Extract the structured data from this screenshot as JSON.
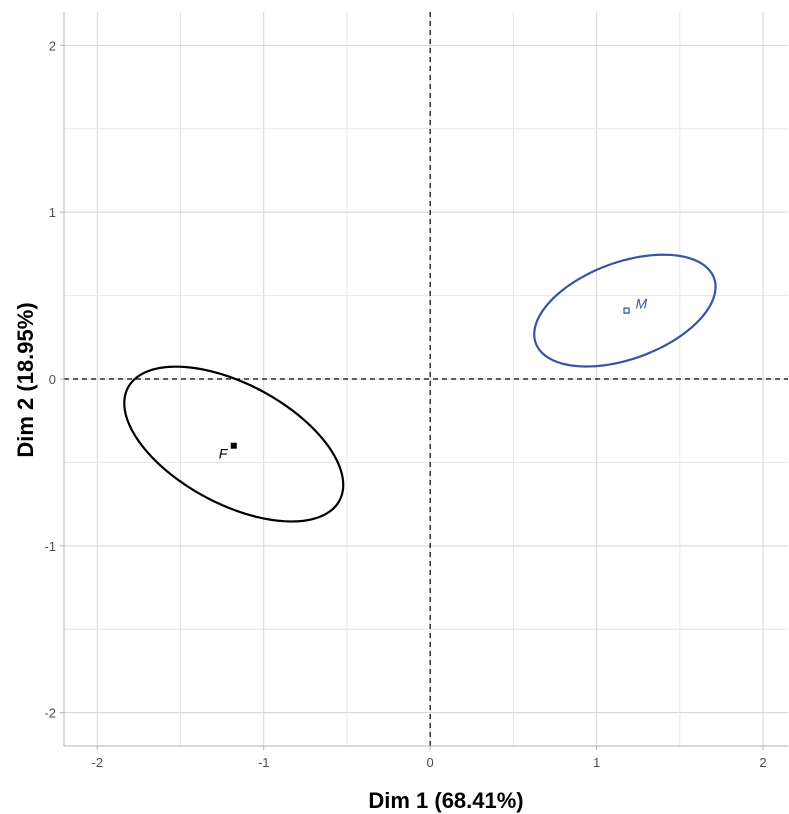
{
  "chart_data": {
    "type": "scatter",
    "xlabel": "Dim 1 (68.41%)",
    "ylabel": "Dim 2 (18.95%)",
    "xlim": [
      -2.2,
      2.15
    ],
    "ylim": [
      -2.2,
      2.2
    ],
    "x_ticks": [
      "-2",
      "-1",
      "0",
      "1",
      "2"
    ],
    "y_ticks": [
      "-2",
      "-1",
      "0",
      "1",
      "2"
    ],
    "grid": true,
    "reference_lines": {
      "x": 0,
      "y": 0
    },
    "series": [
      {
        "name": "F",
        "color": "#000000",
        "x": -1.18,
        "y": -0.4,
        "ellipse": {
          "cx": -1.18,
          "cy": -0.39,
          "rx": 0.72,
          "ry": 0.36,
          "angle_deg": -28
        }
      },
      {
        "name": "M",
        "color": "#3a53a4",
        "x": 1.18,
        "y": 0.41,
        "ellipse": {
          "cx": 1.17,
          "cy": 0.41,
          "rx": 0.57,
          "ry": 0.29,
          "angle_deg": 20
        }
      }
    ]
  }
}
